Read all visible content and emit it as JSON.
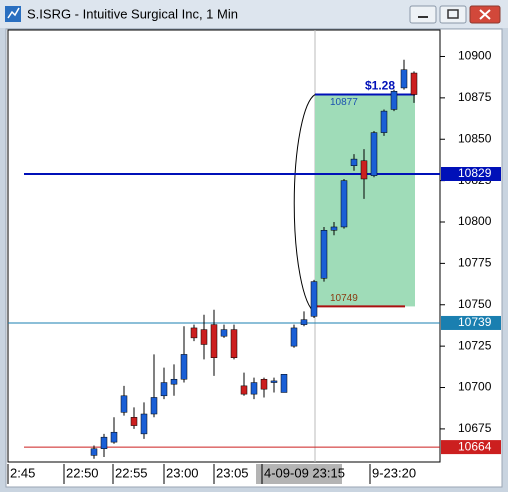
{
  "window": {
    "title": "S.ISRG - Intuitive Surgical Inc, 1 Min"
  },
  "chart_data": {
    "type": "candlestick",
    "open": [
      10659,
      10663,
      10667,
      10685,
      10682,
      10672,
      10684,
      10695,
      10702,
      10705,
      10736,
      10735,
      10738,
      10731,
      10735,
      10701,
      10696,
      10705,
      10703,
      10697,
      10725,
      10738,
      10743,
      10766,
      10795,
      10797,
      10834,
      10837,
      10828,
      10854,
      10868,
      10881,
      10890
    ],
    "high": [
      10665,
      10672,
      10682,
      10701,
      10688,
      10691,
      10720,
      10712,
      10714,
      10737,
      10738,
      10744,
      10747,
      10738,
      10738,
      10709,
      10706,
      10706,
      10706,
      10708,
      10738,
      10746,
      10765,
      10797,
      10800,
      10826,
      10841,
      10844,
      10855,
      10868,
      10880,
      10898,
      10891
    ],
    "low": [
      10657,
      10658,
      10666,
      10683,
      10675,
      10669,
      10682,
      10693,
      10695,
      10703,
      10728,
      10717,
      10707,
      10730,
      10717,
      10695,
      10693,
      10694,
      10697,
      10697,
      10724,
      10737,
      10742,
      10764,
      10792,
      10796,
      10831,
      10814,
      10827,
      10852,
      10867,
      10880,
      10872
    ],
    "close": [
      10663,
      10670,
      10673,
      10695,
      10677,
      10684,
      10694,
      10703,
      10705,
      10720,
      10730,
      10726,
      10718,
      10735,
      10718,
      10696,
      10703,
      10699,
      10704,
      10708,
      10736,
      10741,
      10764,
      10795,
      10797,
      10825,
      10838,
      10826,
      10854,
      10867,
      10879,
      10892,
      10877
    ],
    "up_color": "#1a5fd6",
    "down_color": "#cc1f1f",
    "ylim": [
      10655,
      10916
    ],
    "yticks": [
      10675,
      10700,
      10725,
      10750,
      10775,
      10800,
      10825,
      10850,
      10875,
      10900
    ],
    "x_labels": [
      "2:45",
      "22:50",
      "22:55",
      "23:00",
      "23:05",
      "4-09-09 23:15",
      "9-23:20"
    ],
    "hlines": [
      {
        "value": 10829,
        "color": "#0010b8"
      },
      {
        "value": 10739,
        "color": "#1a7fb0"
      },
      {
        "value": 10664,
        "color": "#cc1f1f"
      }
    ],
    "box": {
      "top": 10877,
      "bottom": 10749,
      "change": "$1.28",
      "color": "#9fdcb8"
    }
  }
}
